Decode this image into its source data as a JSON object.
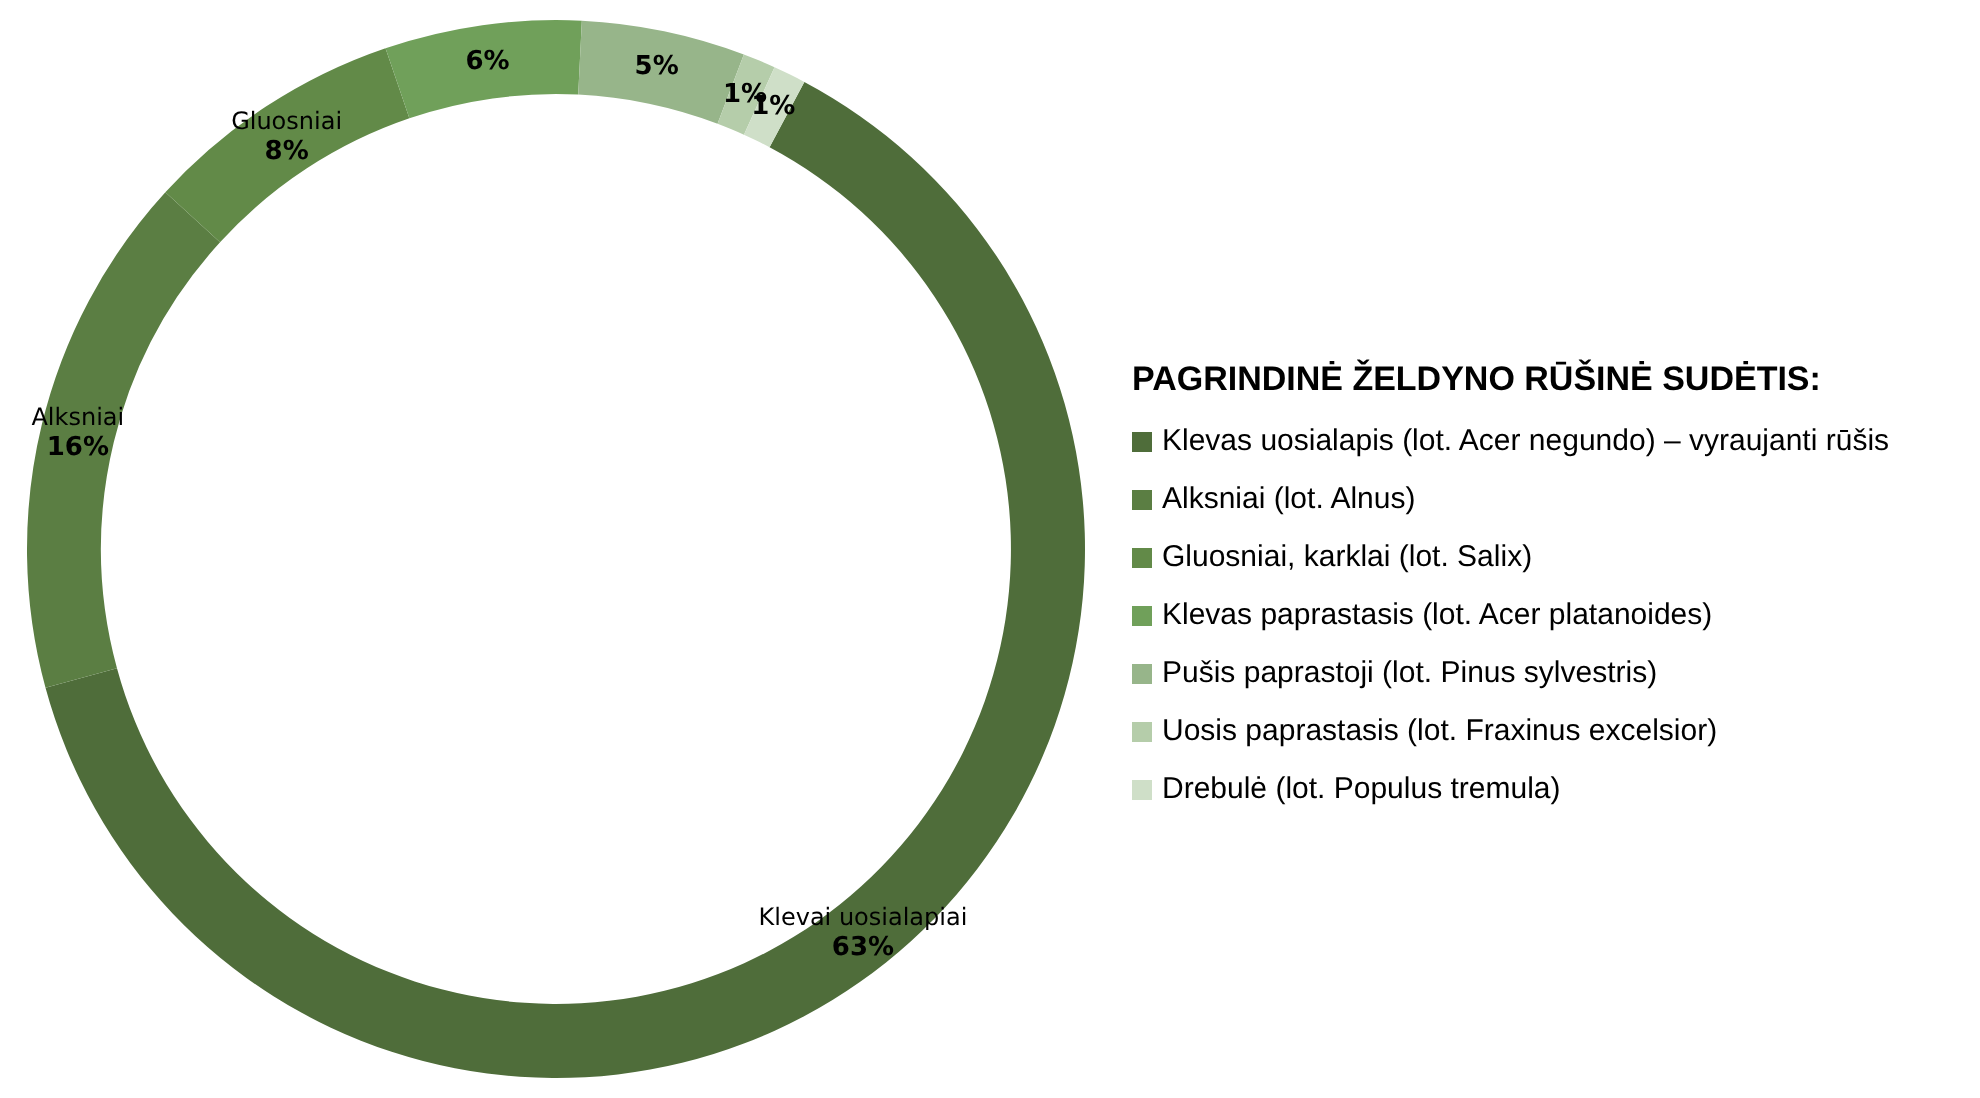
{
  "chart_data": {
    "type": "donut",
    "legend_title": "PAGRINDINĖ ŽELDYNO RŪŠINĖ SUDĖTIS:",
    "legend": "right",
    "categories": [
      "Klevas uosialapis (lot. Acer negundo) – vyraujanti rūšis",
      "Alksniai (lot. Alnus)",
      "Gluosniai, karklai (lot. Salix)",
      "Klevas paprastasis (lot. Acer platanoides)",
      "Pušis paprastoji (lot. Pinus sylvestris)",
      "Uosis paprastasis (lot. Fraxinus excelsior)",
      "Drebulė (lot. Populus tremula)"
    ],
    "values": [
      63,
      16,
      8,
      6,
      5,
      1,
      1
    ],
    "colors": [
      "#4f6d3a",
      "#5b7e43",
      "#628a48",
      "#70a05a",
      "#97b58a",
      "#b5cdaa",
      "#cfdfc8"
    ],
    "value_labels": [
      "Klevai uosialapiai\n63%",
      "Alksniai\n16%",
      "Gluosniai\n8%",
      "6%",
      "5%",
      "1%",
      "1%"
    ]
  }
}
